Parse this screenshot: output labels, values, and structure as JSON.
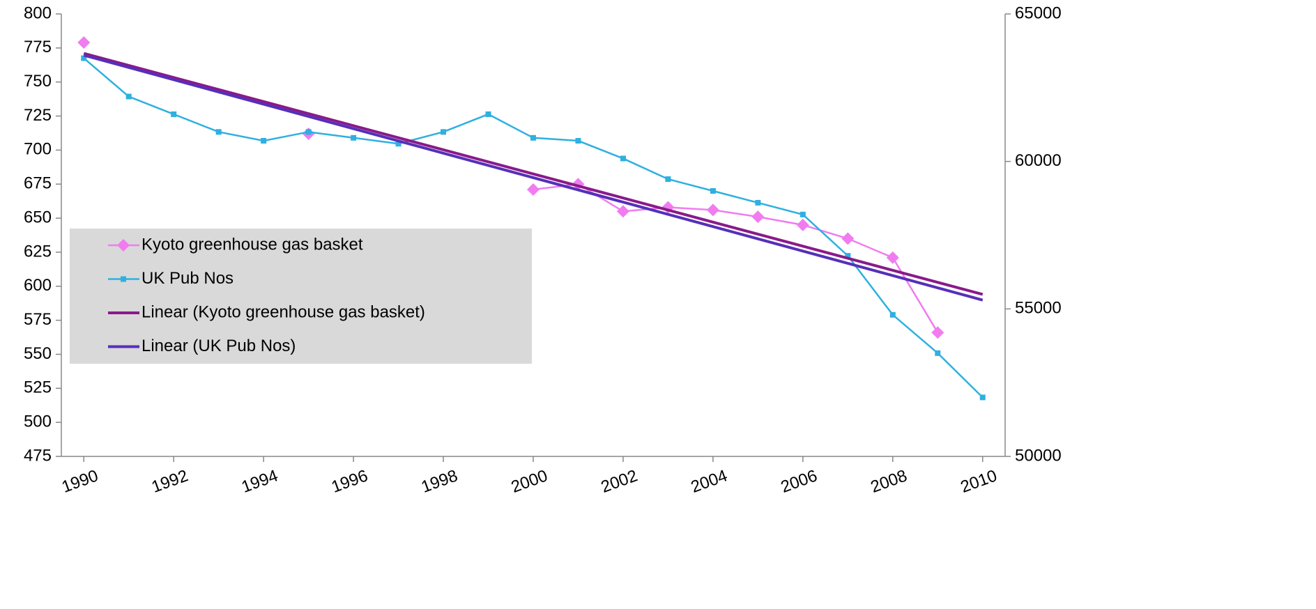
{
  "chart_data": {
    "type": "line",
    "x": [
      1990,
      1991,
      1992,
      1993,
      1994,
      1995,
      1996,
      1997,
      1998,
      1999,
      2000,
      2001,
      2002,
      2003,
      2004,
      2005,
      2006,
      2007,
      2008,
      2009,
      2010
    ],
    "xlim": [
      1989.5,
      2010.5
    ],
    "xticks": [
      1990,
      1992,
      1994,
      1996,
      1998,
      2000,
      2002,
      2004,
      2006,
      2008,
      2010
    ],
    "ylim": [
      475,
      800
    ],
    "yticks": [
      475,
      500,
      525,
      550,
      575,
      600,
      625,
      650,
      675,
      700,
      725,
      750,
      775,
      800
    ],
    "y2lim": [
      50000,
      65000
    ],
    "y2ticks": [
      50000,
      55000,
      60000,
      65000
    ],
    "grid": false,
    "legend": "left",
    "series": [
      {
        "name": "Kyoto greenhouse gas basket",
        "color": "#f07cf0",
        "marker": "diamond",
        "values": [
          779,
          null,
          null,
          null,
          null,
          712,
          null,
          null,
          null,
          null,
          671,
          675,
          655,
          658,
          656,
          651,
          645,
          635,
          621,
          566,
          null
        ]
      },
      {
        "name": "UK Pub Nos",
        "color": "#2eb0e0",
        "marker": "square",
        "axis": "y2",
        "values": [
          63500,
          62200,
          61600,
          61000,
          60700,
          61000,
          60800,
          60600,
          61000,
          61600,
          60800,
          60700,
          60100,
          59400,
          59000,
          58600,
          58200,
          56800,
          54800,
          53500,
          52000
        ]
      },
      {
        "name": "Linear (Kyoto greenhouse gas basket)",
        "color": "#8a1a8a",
        "x": [
          1990,
          2010
        ],
        "values": [
          771,
          594
        ]
      },
      {
        "name": "Linear (UK Pub Nos)",
        "color": "#5530b8",
        "axis": "y2",
        "x": [
          1990,
          2010
        ],
        "values": [
          63600,
          55300
        ]
      }
    ]
  }
}
